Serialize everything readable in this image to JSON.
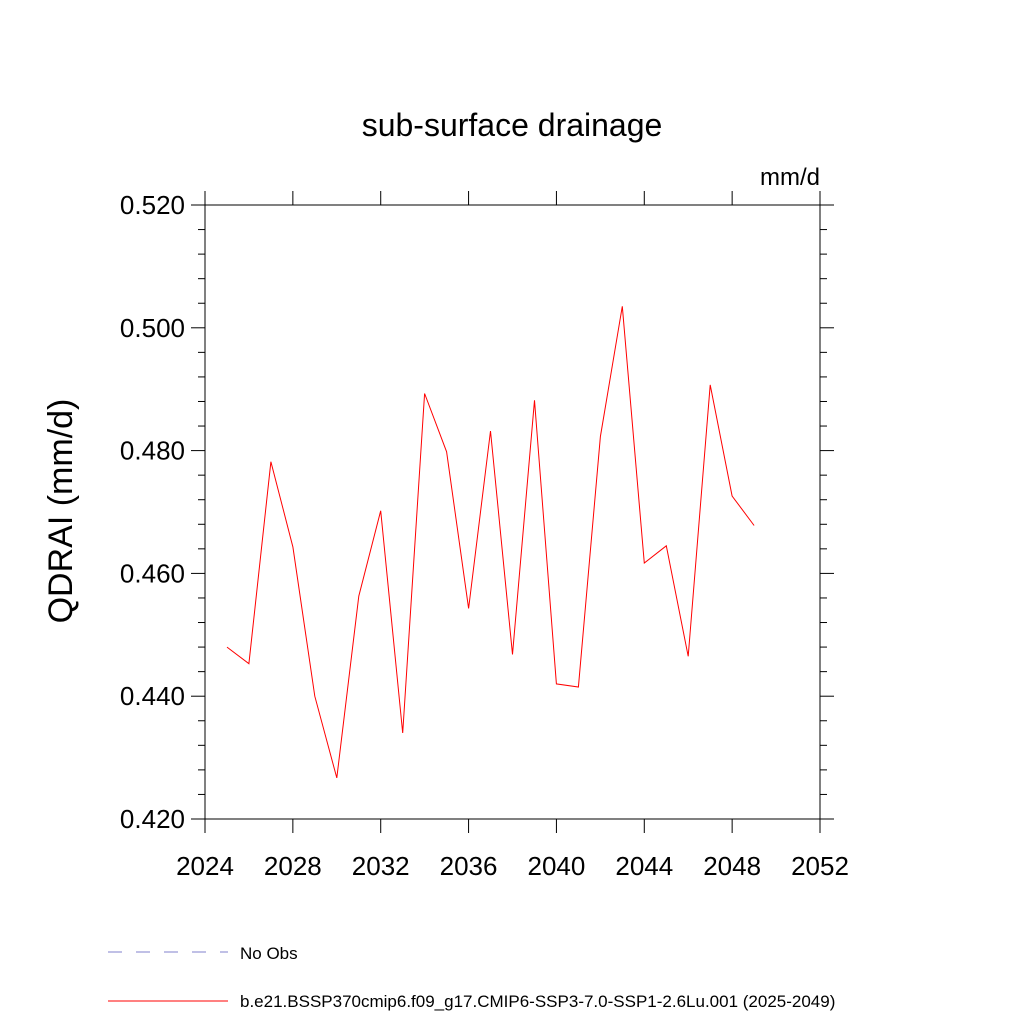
{
  "chart_data": {
    "type": "line",
    "title": "sub-surface drainage",
    "units_label": "mm/d",
    "ylabel": "QDRAI  (mm/d)",
    "xlabel": "",
    "xlim": [
      2024,
      2052
    ],
    "ylim": [
      0.42,
      0.52
    ],
    "x_ticks": [
      2024,
      2028,
      2032,
      2036,
      2040,
      2044,
      2048,
      2052
    ],
    "x_tick_labels": [
      "2024",
      "2028",
      "2032",
      "2036",
      "2040",
      "2044",
      "2048",
      "2052"
    ],
    "y_ticks": [
      0.42,
      0.44,
      0.46,
      0.48,
      0.5,
      0.52
    ],
    "y_tick_labels": [
      "0.420",
      "0.440",
      "0.460",
      "0.480",
      "0.500",
      "0.520"
    ],
    "series": [
      {
        "name": "b.e21.BSSP370cmip6.f09_g17.CMIP6-SSP3-7.0-SSP1-2.6Lu.001 (2025-2049)",
        "color": "#ff0000",
        "x": [
          2025,
          2026,
          2027,
          2028,
          2029,
          2030,
          2031,
          2032,
          2033,
          2034,
          2035,
          2036,
          2037,
          2038,
          2039,
          2040,
          2041,
          2042,
          2043,
          2044,
          2045,
          2046,
          2047,
          2048,
          2049
        ],
        "values": [
          0.448,
          0.4453,
          0.4782,
          0.4643,
          0.44,
          0.4267,
          0.4563,
          0.4702,
          0.434,
          0.4893,
          0.4798,
          0.4543,
          0.4832,
          0.4468,
          0.4882,
          0.442,
          0.4415,
          0.4823,
          0.5035,
          0.4617,
          0.4645,
          0.4465,
          0.4907,
          0.4726,
          0.4678
        ]
      }
    ],
    "legend": {
      "placement": "bottom",
      "items": [
        {
          "label": "No Obs",
          "style": "dashed",
          "color": "#8080cc"
        },
        {
          "label": "b.e21.BSSP370cmip6.f09_g17.CMIP6-SSP3-7.0-SSP1-2.6Lu.001 (2025-2049)",
          "style": "solid",
          "color": "#ff0000"
        }
      ]
    }
  }
}
